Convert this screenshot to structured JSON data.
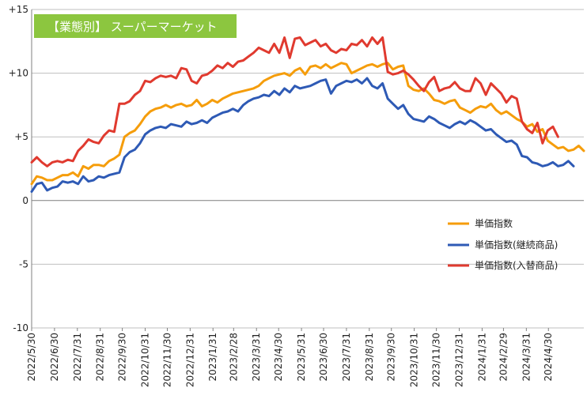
{
  "chart_data": {
    "type": "line",
    "title": "【業態別】 スーパーマーケット",
    "colors": {
      "title_badge": "#8cc63f",
      "gridline": "#bfbfbf",
      "zero_line": "#7f7f7f"
    },
    "ylim": [
      -10,
      15
    ],
    "y_ticks": [
      15,
      10,
      5,
      0,
      -5,
      -10
    ],
    "y_tick_labels": [
      "+15",
      "+10",
      "+5",
      "0",
      "-5",
      "-10"
    ],
    "grid": "horizontal",
    "legend_position": "right-middle",
    "x_tick_labels": [
      "2022/5/30",
      "2022/6/30",
      "2022/7/31",
      "2022/8/31",
      "2022/9/30",
      "2022/10/31",
      "2022/11/30",
      "2022/12/31",
      "2023/1/31",
      "2023/2/28",
      "2023/3/31",
      "2023/4/30",
      "2023/5/31",
      "2023/6/30",
      "2023/7/31",
      "2023/8/31",
      "2023/9/30",
      "2023/10/31",
      "2023/11/30",
      "2023/12/31",
      "2024/1/31",
      "2024/2/29",
      "2024/3/31",
      "2024/4/30"
    ],
    "x_tick_weeks": [
      0,
      4.43,
      8.86,
      13.29,
      17.57,
      22,
      26.29,
      30.71,
      35.14,
      39.14,
      43.57,
      47.86,
      52.29,
      56.57,
      61,
      65.43,
      69.71,
      74.14,
      78.43,
      82.86,
      87.29,
      91.43,
      95.86,
      100.14
    ],
    "series": [
      {
        "name": "単価指数",
        "color": "#f59d0b",
        "values": [
          1.3,
          1.9,
          1.8,
          1.6,
          1.6,
          1.8,
          2.0,
          2.0,
          2.2,
          1.9,
          2.7,
          2.5,
          2.8,
          2.8,
          2.7,
          3.1,
          3.3,
          3.6,
          5.0,
          5.3,
          5.5,
          6.0,
          6.6,
          7.0,
          7.2,
          7.3,
          7.5,
          7.3,
          7.5,
          7.6,
          7.4,
          7.5,
          7.9,
          7.4,
          7.6,
          7.9,
          7.7,
          8.0,
          8.2,
          8.4,
          8.5,
          8.6,
          8.7,
          8.8,
          9.0,
          9.4,
          9.6,
          9.8,
          9.9,
          10.0,
          9.8,
          10.2,
          10.4,
          9.9,
          10.5,
          10.6,
          10.4,
          10.7,
          10.4,
          10.6,
          10.8,
          10.7,
          10.0,
          10.2,
          10.4,
          10.6,
          10.7,
          10.5,
          10.7,
          10.8,
          10.3,
          10.5,
          10.6,
          9.0,
          8.7,
          8.6,
          8.8,
          8.4,
          7.9,
          7.8,
          7.6,
          7.8,
          7.9,
          7.3,
          7.1,
          6.9,
          7.2,
          7.4,
          7.3,
          7.6,
          7.1,
          6.8,
          7.0,
          6.7,
          6.4,
          6.2,
          5.8,
          6.0,
          5.4,
          5.6,
          4.7,
          4.4,
          4.1,
          4.2,
          3.9,
          4.0,
          4.3,
          3.9
        ]
      },
      {
        "name": "単価指数(継続商品)",
        "color": "#2e5ab5",
        "values": [
          0.7,
          1.3,
          1.4,
          0.8,
          1.0,
          1.1,
          1.5,
          1.4,
          1.5,
          1.3,
          1.9,
          1.5,
          1.6,
          1.9,
          1.8,
          2.0,
          2.1,
          2.2,
          3.4,
          3.8,
          4.0,
          4.5,
          5.2,
          5.5,
          5.7,
          5.8,
          5.7,
          6.0,
          5.9,
          5.8,
          6.2,
          6.0,
          6.1,
          6.3,
          6.1,
          6.5,
          6.7,
          6.9,
          7.0,
          7.2,
          7.0,
          7.5,
          7.8,
          8.0,
          8.1,
          8.3,
          8.2,
          8.6,
          8.3,
          8.8,
          8.5,
          9.0,
          8.8,
          8.9,
          9.0,
          9.2,
          9.4,
          9.5,
          8.4,
          9.0,
          9.2,
          9.4,
          9.3,
          9.5,
          9.2,
          9.6,
          9.0,
          8.8,
          9.2,
          8.0,
          7.6,
          7.2,
          7.5,
          6.8,
          6.4,
          6.3,
          6.2,
          6.6,
          6.4,
          6.1,
          5.9,
          5.7,
          6.0,
          6.2,
          6.0,
          6.3,
          6.1,
          5.8,
          5.5,
          5.6,
          5.2,
          4.9,
          4.6,
          4.7,
          4.4,
          3.5,
          3.4,
          3.0,
          2.9,
          2.7,
          2.8,
          3.0,
          2.7,
          2.8,
          3.1,
          2.7
        ]
      },
      {
        "name": "単価指数(入替商品)",
        "color": "#e03a2f",
        "values": [
          3.0,
          3.4,
          3.0,
          2.7,
          3.0,
          3.1,
          3.0,
          3.2,
          3.1,
          3.9,
          4.3,
          4.8,
          4.6,
          4.5,
          5.1,
          5.5,
          5.4,
          7.6,
          7.6,
          7.8,
          8.3,
          8.6,
          9.4,
          9.3,
          9.6,
          9.8,
          9.7,
          9.8,
          9.6,
          10.4,
          10.3,
          9.4,
          9.2,
          9.8,
          9.9,
          10.2,
          10.6,
          10.4,
          10.8,
          10.5,
          10.9,
          11.0,
          11.3,
          11.6,
          12.0,
          11.8,
          11.6,
          12.3,
          11.6,
          12.8,
          11.2,
          12.7,
          12.8,
          12.2,
          12.4,
          12.6,
          12.1,
          12.3,
          11.8,
          11.6,
          11.9,
          11.8,
          12.3,
          12.2,
          12.6,
          12.1,
          12.8,
          12.3,
          12.8,
          10.1,
          9.9,
          10.0,
          10.2,
          9.9,
          9.5,
          9.0,
          8.6,
          9.3,
          9.7,
          8.6,
          8.8,
          8.9,
          9.3,
          8.8,
          8.6,
          8.6,
          9.6,
          9.2,
          8.3,
          9.2,
          8.8,
          8.4,
          7.7,
          8.2,
          8.0,
          6.2,
          5.6,
          5.3,
          6.1,
          4.5,
          5.5,
          5.8,
          5.0
        ]
      }
    ]
  }
}
